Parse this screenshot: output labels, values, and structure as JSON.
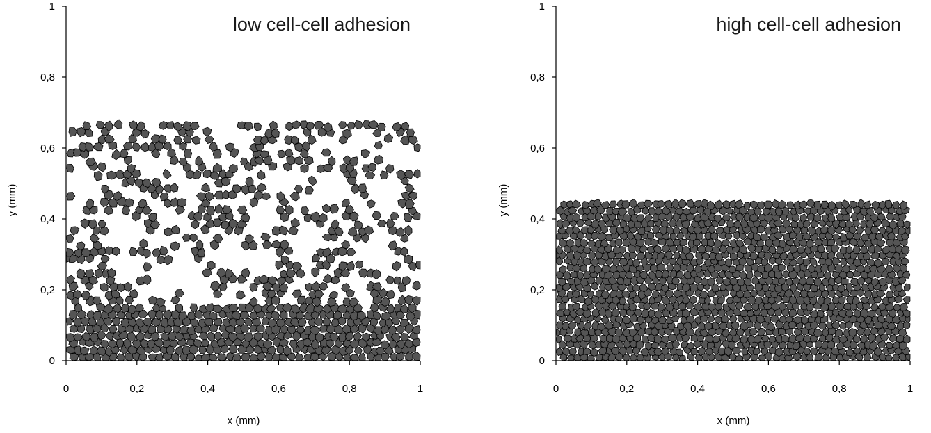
{
  "colors": {
    "cell_fill": "#555555",
    "cell_outline": "#000000",
    "background": "#ffffff"
  },
  "chart_data": [
    {
      "type": "scatter",
      "title": "low cell-cell adhesion",
      "xlabel": "x (mm)",
      "ylabel": "y (mm)",
      "xlim": [
        0,
        1
      ],
      "ylim": [
        0,
        1
      ],
      "x_ticks": [
        "0",
        "0,2",
        "0,4",
        "0,6",
        "0,8",
        "1"
      ],
      "y_ticks": [
        "0",
        "0,2",
        "0,4",
        "0,6",
        "0,8",
        "1"
      ],
      "grid": false,
      "front_height_mm": 0.72,
      "dense_layer_height_mm": 0.15,
      "cell_diameter_mm": 0.022,
      "voids": [
        {
          "x": 0.17,
          "y": 0.36,
          "r": 0.055
        },
        {
          "x": 0.18,
          "y": 0.26,
          "r": 0.045
        },
        {
          "x": 0.34,
          "y": 0.25,
          "r": 0.05
        },
        {
          "x": 0.38,
          "y": 0.19,
          "r": 0.045
        },
        {
          "x": 0.28,
          "y": 0.21,
          "r": 0.04
        },
        {
          "x": 0.46,
          "y": 0.3,
          "r": 0.045
        },
        {
          "x": 0.55,
          "y": 0.28,
          "r": 0.05
        },
        {
          "x": 0.56,
          "y": 0.4,
          "r": 0.04
        },
        {
          "x": 0.68,
          "y": 0.33,
          "r": 0.045
        },
        {
          "x": 0.74,
          "y": 0.48,
          "r": 0.04
        },
        {
          "x": 0.88,
          "y": 0.3,
          "r": 0.05
        },
        {
          "x": 0.9,
          "y": 0.48,
          "r": 0.04
        },
        {
          "x": 0.92,
          "y": 0.58,
          "r": 0.035
        },
        {
          "x": 0.05,
          "y": 0.5,
          "r": 0.035
        },
        {
          "x": 0.26,
          "y": 0.55,
          "r": 0.03
        },
        {
          "x": 0.62,
          "y": 0.5,
          "r": 0.03
        },
        {
          "x": 0.82,
          "y": 0.62,
          "r": 0.03
        },
        {
          "x": 0.44,
          "y": 0.63,
          "r": 0.03
        }
      ],
      "sparse_density": 0.5
    },
    {
      "type": "scatter",
      "title": "high cell-cell adhesion",
      "xlabel": "x (mm)",
      "ylabel": "y (mm)",
      "xlim": [
        0,
        1
      ],
      "ylim": [
        0,
        1
      ],
      "x_ticks": [
        "0",
        "0,2",
        "0,4",
        "0,6",
        "0,8",
        "1"
      ],
      "y_ticks": [
        "0",
        "0,2",
        "0,4",
        "0,6",
        "0,8",
        "1"
      ],
      "grid": false,
      "front_height_mm": 0.48,
      "dense_layer_height_mm": 0.48,
      "cell_diameter_mm": 0.02,
      "voids": [],
      "sparse_density": 1.0
    }
  ]
}
